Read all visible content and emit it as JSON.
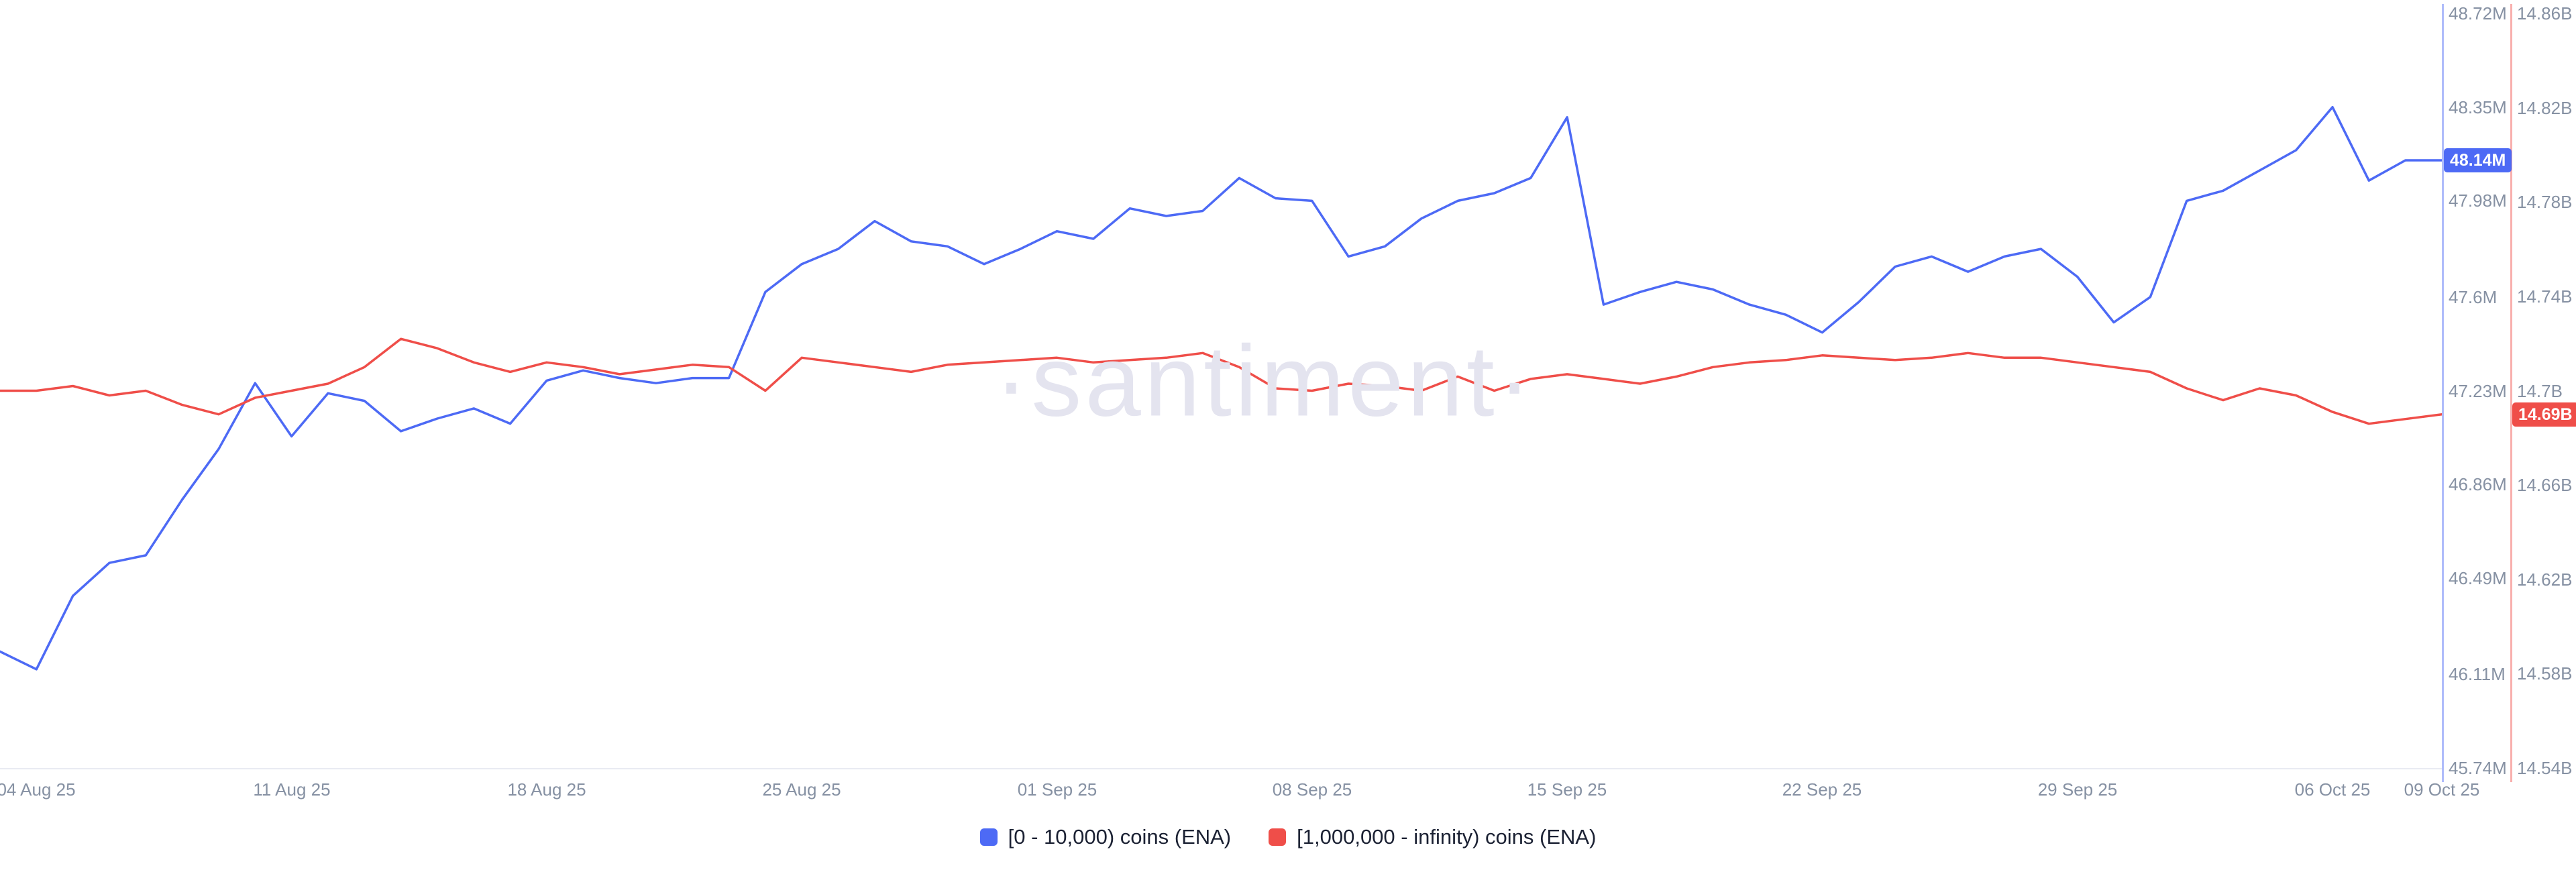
{
  "watermark": "·santiment·",
  "legend": {
    "items": [
      {
        "label": "[0 - 10,000) coins (ENA)",
        "color": "#4d6af5"
      },
      {
        "label": "[1,000,000 - infinity) coins (ENA)",
        "color": "#ef4e49"
      }
    ]
  },
  "chart_data": {
    "type": "line",
    "title": "",
    "xlabel": "",
    "ylabel": "",
    "grid": false,
    "legend_position": "bottom-center",
    "x": [
      "2025-08-03",
      "2025-08-04",
      "2025-08-05",
      "2025-08-06",
      "2025-08-07",
      "2025-08-08",
      "2025-08-09",
      "2025-08-10",
      "2025-08-11",
      "2025-08-12",
      "2025-08-13",
      "2025-08-14",
      "2025-08-15",
      "2025-08-16",
      "2025-08-17",
      "2025-08-18",
      "2025-08-19",
      "2025-08-20",
      "2025-08-21",
      "2025-08-22",
      "2025-08-23",
      "2025-08-24",
      "2025-08-25",
      "2025-08-26",
      "2025-08-27",
      "2025-08-28",
      "2025-08-29",
      "2025-08-30",
      "2025-08-31",
      "2025-09-01",
      "2025-09-02",
      "2025-09-03",
      "2025-09-04",
      "2025-09-05",
      "2025-09-06",
      "2025-09-07",
      "2025-09-08",
      "2025-09-09",
      "2025-09-10",
      "2025-09-11",
      "2025-09-12",
      "2025-09-13",
      "2025-09-14",
      "2025-09-15",
      "2025-09-16",
      "2025-09-17",
      "2025-09-18",
      "2025-09-19",
      "2025-09-20",
      "2025-09-21",
      "2025-09-22",
      "2025-09-23",
      "2025-09-24",
      "2025-09-25",
      "2025-09-26",
      "2025-09-27",
      "2025-09-28",
      "2025-09-29",
      "2025-09-30",
      "2025-10-01",
      "2025-10-02",
      "2025-10-03",
      "2025-10-04",
      "2025-10-05",
      "2025-10-06",
      "2025-10-07",
      "2025-10-08",
      "2025-10-09"
    ],
    "x_tick_labels": [
      {
        "label": "04 Aug 25",
        "index": 1
      },
      {
        "label": "11 Aug 25",
        "index": 8
      },
      {
        "label": "18 Aug 25",
        "index": 15
      },
      {
        "label": "25 Aug 25",
        "index": 22
      },
      {
        "label": "01 Sep 25",
        "index": 29
      },
      {
        "label": "08 Sep 25",
        "index": 36
      },
      {
        "label": "15 Sep 25",
        "index": 43
      },
      {
        "label": "22 Sep 25",
        "index": 50
      },
      {
        "label": "29 Sep 25",
        "index": 57
      },
      {
        "label": "06 Oct 25",
        "index": 64
      },
      {
        "label": "09 Oct 25",
        "index": 67
      }
    ],
    "series": [
      {
        "name": "[0 - 10,000) coins (ENA)",
        "unit": "M",
        "color": "#4d6af5",
        "axis_side": "right-inner",
        "axis_range": [
          45.74,
          48.72
        ],
        "axis_ticks": [
          "48.72M",
          "48.35M",
          "47.98M",
          "47.6M",
          "47.23M",
          "46.86M",
          "46.49M",
          "46.11M",
          "45.74M"
        ],
        "axis_tick_values": [
          48.72,
          48.35,
          47.98,
          47.6,
          47.23,
          46.86,
          46.49,
          46.11,
          45.74
        ],
        "last_value": 48.14,
        "last_value_label": "48.14M",
        "values": [
          46.2,
          46.13,
          46.42,
          46.55,
          46.58,
          46.8,
          47.0,
          47.26,
          47.05,
          47.22,
          47.19,
          47.07,
          47.12,
          47.16,
          47.1,
          47.27,
          47.31,
          47.28,
          47.26,
          47.28,
          47.28,
          47.62,
          47.73,
          47.79,
          47.9,
          47.82,
          47.8,
          47.73,
          47.79,
          47.86,
          47.83,
          47.95,
          47.92,
          47.94,
          48.07,
          47.99,
          47.98,
          47.76,
          47.8,
          47.91,
          47.98,
          48.01,
          48.07,
          48.31,
          47.57,
          47.62,
          47.66,
          47.63,
          47.57,
          47.53,
          47.46,
          47.58,
          47.72,
          47.76,
          47.7,
          47.76,
          47.79,
          47.68,
          47.5,
          47.6,
          47.98,
          48.02,
          48.1,
          48.18,
          48.35,
          48.06,
          48.14,
          48.14
        ]
      },
      {
        "name": "[1,000,000 - infinity) coins (ENA)",
        "unit": "B",
        "color": "#ef4e49",
        "axis_side": "right-outer",
        "axis_range": [
          14.54,
          14.86
        ],
        "axis_ticks": [
          "14.86B",
          "14.82B",
          "14.78B",
          "14.74B",
          "14.7B",
          "14.66B",
          "14.62B",
          "14.58B",
          "14.54B"
        ],
        "axis_tick_values": [
          14.86,
          14.82,
          14.78,
          14.74,
          14.7,
          14.66,
          14.62,
          14.58,
          14.54
        ],
        "last_value": 14.69,
        "last_value_label": "14.69B",
        "values": [
          14.7,
          14.7,
          14.702,
          14.698,
          14.7,
          14.694,
          14.69,
          14.697,
          14.7,
          14.703,
          14.71,
          14.722,
          14.718,
          14.712,
          14.708,
          14.712,
          14.71,
          14.707,
          14.709,
          14.711,
          14.71,
          14.7,
          14.714,
          14.712,
          14.71,
          14.708,
          14.711,
          14.712,
          14.713,
          14.714,
          14.712,
          14.713,
          14.714,
          14.716,
          14.71,
          14.701,
          14.7,
          14.703,
          14.702,
          14.7,
          14.706,
          14.7,
          14.705,
          14.707,
          14.705,
          14.703,
          14.706,
          14.71,
          14.712,
          14.713,
          14.715,
          14.714,
          14.713,
          14.714,
          14.716,
          14.714,
          14.714,
          14.712,
          14.71,
          14.708,
          14.701,
          14.696,
          14.701,
          14.698,
          14.691,
          14.686,
          14.688,
          14.69
        ]
      }
    ]
  }
}
